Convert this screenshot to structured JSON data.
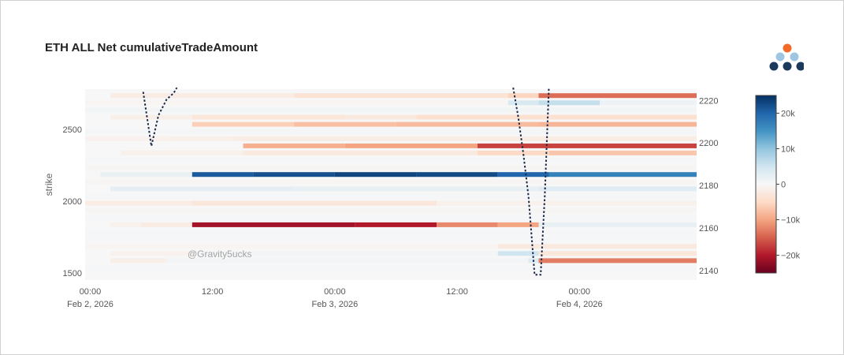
{
  "title": "ETH ALL Net cumulativeTradeAmount",
  "watermark": "@Gravity5ucks",
  "logo": {
    "icon": "gravity-logo-icon",
    "colors": [
      "#f26b2a",
      "#9fc6e0",
      "#1b3a5c"
    ]
  },
  "chart_data": {
    "type": "heatmap",
    "title": "ETH ALL Net cumulativeTradeAmount",
    "ylabel": "strike",
    "xlabel": "",
    "x_tick_labels": [
      {
        "t": 0,
        "line1": "00:00",
        "line2": "Feb 2, 2026"
      },
      {
        "t": 12,
        "line1": "12:00",
        "line2": ""
      },
      {
        "t": 24,
        "line1": "00:00",
        "line2": "Feb 3, 2026"
      },
      {
        "t": 36,
        "line1": "12:00",
        "line2": ""
      },
      {
        "t": 48,
        "line1": "00:00",
        "line2": "Feb 4, 2026"
      }
    ],
    "x_range_hours_from_feb2": [
      -0.5,
      59.5
    ],
    "y_left_ticks": [
      1500,
      2000,
      2500
    ],
    "y_left_range": [
      1450,
      2780
    ],
    "y_right_ticks": [
      2140,
      2160,
      2180,
      2200,
      2220
    ],
    "y_right_range": [
      2135.5,
      2225.3
    ],
    "colorscale": {
      "name": "RdBu",
      "min": -25000,
      "max": 25000,
      "ticks": [
        20000,
        10000,
        0,
        -10000,
        -20000
      ],
      "tick_labels": [
        "20k",
        "10k",
        "0",
        "−10k",
        "−20k"
      ]
    },
    "grid": false,
    "legend": "none",
    "strike_rows": [
      {
        "strike": 2725,
        "segments": [
          [
            2,
            20,
            -2000
          ],
          [
            20,
            41,
            -3500
          ],
          [
            41,
            44,
            -5500
          ],
          [
            44,
            59.5,
            -14000
          ]
        ]
      },
      {
        "strike": 2675,
        "segments": [
          [
            -0.5,
            41,
            -500
          ],
          [
            41,
            44,
            4000
          ],
          [
            44,
            50,
            6000
          ],
          [
            50,
            59.5,
            1500
          ]
        ]
      },
      {
        "strike": 2625,
        "segments": [
          [
            -0.5,
            59.5,
            600
          ]
        ]
      },
      {
        "strike": 2575,
        "segments": [
          [
            2,
            10,
            -1500
          ],
          [
            10,
            25,
            -3000
          ],
          [
            25,
            32,
            -2500
          ],
          [
            32,
            59.5,
            -4000
          ]
        ]
      },
      {
        "strike": 2525,
        "segments": [
          [
            10,
            20,
            -6000
          ],
          [
            20,
            30,
            -7500
          ],
          [
            30,
            44,
            -8000
          ],
          [
            44,
            59.5,
            -8500
          ]
        ]
      },
      {
        "strike": 2475,
        "segments": [
          [
            -0.5,
            59.5,
            500
          ]
        ]
      },
      {
        "strike": 2425,
        "segments": [
          [
            -0.5,
            8,
            -1000
          ],
          [
            8,
            14,
            -1500
          ],
          [
            14,
            59.5,
            -2000
          ]
        ]
      },
      {
        "strike": 2375,
        "segments": [
          [
            15,
            25,
            -9000
          ],
          [
            25,
            38,
            -10000
          ],
          [
            38,
            59.5,
            -17000
          ]
        ]
      },
      {
        "strike": 2325,
        "segments": [
          [
            3,
            15,
            -1200
          ],
          [
            15,
            38,
            -2500
          ],
          [
            38,
            45,
            -5000
          ],
          [
            45,
            59.5,
            -7000
          ]
        ]
      },
      {
        "strike": 2275,
        "segments": [
          [
            -0.5,
            59.5,
            300
          ]
        ]
      },
      {
        "strike": 2225,
        "segments": [
          [
            -0.5,
            59.5,
            -400
          ]
        ]
      },
      {
        "strike": 2175,
        "segments": [
          [
            1,
            10,
            2000
          ],
          [
            10,
            16,
            21000
          ],
          [
            16,
            24,
            22000
          ],
          [
            24,
            32,
            23000
          ],
          [
            32,
            40,
            22500
          ],
          [
            40,
            45,
            20000
          ],
          [
            45,
            59.5,
            17000
          ]
        ]
      },
      {
        "strike": 2125,
        "segments": [
          [
            -0.5,
            59.5,
            -300
          ]
        ]
      },
      {
        "strike": 2075,
        "segments": [
          [
            2,
            20,
            2500
          ],
          [
            20,
            44,
            2000
          ],
          [
            44,
            59.5,
            3000
          ]
        ]
      },
      {
        "strike": 2025,
        "segments": [
          [
            -0.5,
            59.5,
            300
          ]
        ]
      },
      {
        "strike": 1975,
        "segments": [
          [
            -0.5,
            10,
            -2000
          ],
          [
            10,
            34,
            -3000
          ],
          [
            34,
            59.5,
            -1200
          ]
        ]
      },
      {
        "strike": 1925,
        "segments": [
          [
            -0.5,
            59.5,
            -400
          ]
        ]
      },
      {
        "strike": 1875,
        "segments": [
          [
            -0.5,
            59.5,
            300
          ]
        ]
      },
      {
        "strike": 1825,
        "segments": [
          [
            2,
            5,
            -1000
          ],
          [
            5,
            10,
            -2000
          ],
          [
            10,
            26,
            -21000
          ],
          [
            26,
            34,
            -20000
          ],
          [
            34,
            40,
            -12000
          ],
          [
            40,
            44,
            -10000
          ],
          [
            44,
            59.5,
            2000
          ]
        ]
      },
      {
        "strike": 1775,
        "segments": [
          [
            -0.5,
            59.5,
            300
          ]
        ]
      },
      {
        "strike": 1725,
        "segments": [
          [
            -0.5,
            59.5,
            300
          ]
        ]
      },
      {
        "strike": 1675,
        "segments": [
          [
            -0.5,
            40,
            -500
          ],
          [
            40,
            59.5,
            -2500
          ]
        ]
      },
      {
        "strike": 1625,
        "segments": [
          [
            2,
            10,
            -1000
          ],
          [
            10,
            40,
            500
          ],
          [
            40,
            44,
            5000
          ],
          [
            44,
            59.5,
            -3000
          ]
        ]
      },
      {
        "strike": 1575,
        "segments": [
          [
            2,
            7.5,
            -1500
          ],
          [
            7.5,
            43,
            700
          ],
          [
            43,
            44,
            3500
          ],
          [
            44,
            59.5,
            -13000
          ]
        ]
      },
      {
        "strike": 1525,
        "segments": [
          [
            -0.5,
            59.5,
            200
          ]
        ]
      }
    ],
    "series": [
      {
        "axis": "right",
        "style": "dotted",
        "color": "#1b2a4a",
        "x": [
          5.2,
          6.0,
          6.7,
          7.5,
          8.2,
          8.5
        ],
        "y": [
          2224.0,
          2198.5,
          2213.0,
          2220.5,
          2223.5,
          2226.0
        ]
      },
      {
        "axis": "right",
        "style": "dotted",
        "color": "#1b2a4a",
        "x": [
          41.5,
          42.0,
          42.5,
          43.0,
          43.6,
          44.2,
          44.6,
          45.0
        ],
        "y": [
          2226.0,
          2212.0,
          2195.0,
          2175.0,
          2138.0,
          2138.0,
          2175.0,
          2226.0
        ]
      }
    ]
  }
}
